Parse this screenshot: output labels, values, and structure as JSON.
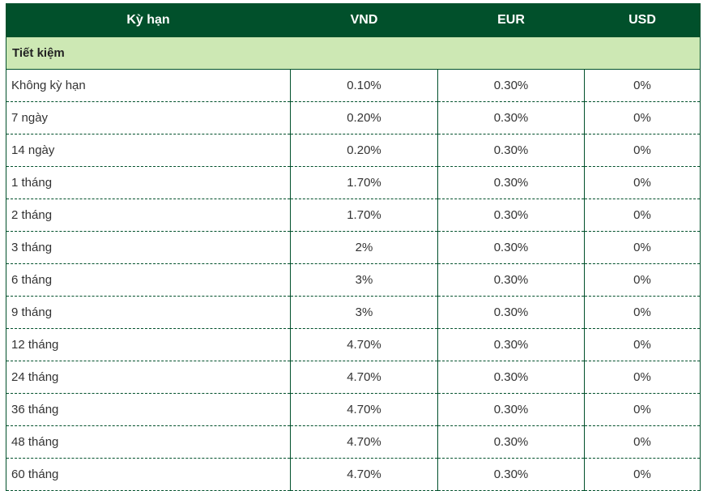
{
  "table": {
    "headers": {
      "term": "Kỳ hạn",
      "vnd": "VND",
      "eur": "EUR",
      "usd": "USD"
    },
    "group_label": "Tiết kiệm",
    "rows": [
      {
        "term": "Không kỳ hạn",
        "vnd": "0.10%",
        "eur": "0.30%",
        "usd": "0%"
      },
      {
        "term": "7 ngày",
        "vnd": "0.20%",
        "eur": "0.30%",
        "usd": "0%"
      },
      {
        "term": "14 ngày",
        "vnd": "0.20%",
        "eur": "0.30%",
        "usd": "0%"
      },
      {
        "term": "1 tháng",
        "vnd": "1.70%",
        "eur": "0.30%",
        "usd": "0%"
      },
      {
        "term": "2 tháng",
        "vnd": "1.70%",
        "eur": "0.30%",
        "usd": "0%"
      },
      {
        "term": "3 tháng",
        "vnd": "2%",
        "eur": "0.30%",
        "usd": "0%"
      },
      {
        "term": "6 tháng",
        "vnd": "3%",
        "eur": "0.30%",
        "usd": "0%"
      },
      {
        "term": "9 tháng",
        "vnd": "3%",
        "eur": "0.30%",
        "usd": "0%"
      },
      {
        "term": "12 tháng",
        "vnd": "4.70%",
        "eur": "0.30%",
        "usd": "0%"
      },
      {
        "term": "24 tháng",
        "vnd": "4.70%",
        "eur": "0.30%",
        "usd": "0%"
      },
      {
        "term": "36 tháng",
        "vnd": "4.70%",
        "eur": "0.30%",
        "usd": "0%"
      },
      {
        "term": "48 tháng",
        "vnd": "4.70%",
        "eur": "0.30%",
        "usd": "0%"
      },
      {
        "term": "60 tháng",
        "vnd": "4.70%",
        "eur": "0.30%",
        "usd": "0%"
      }
    ]
  },
  "colors": {
    "header_bg": "#01502b",
    "group_bg": "#cde8b4",
    "border": "#01502b"
  }
}
